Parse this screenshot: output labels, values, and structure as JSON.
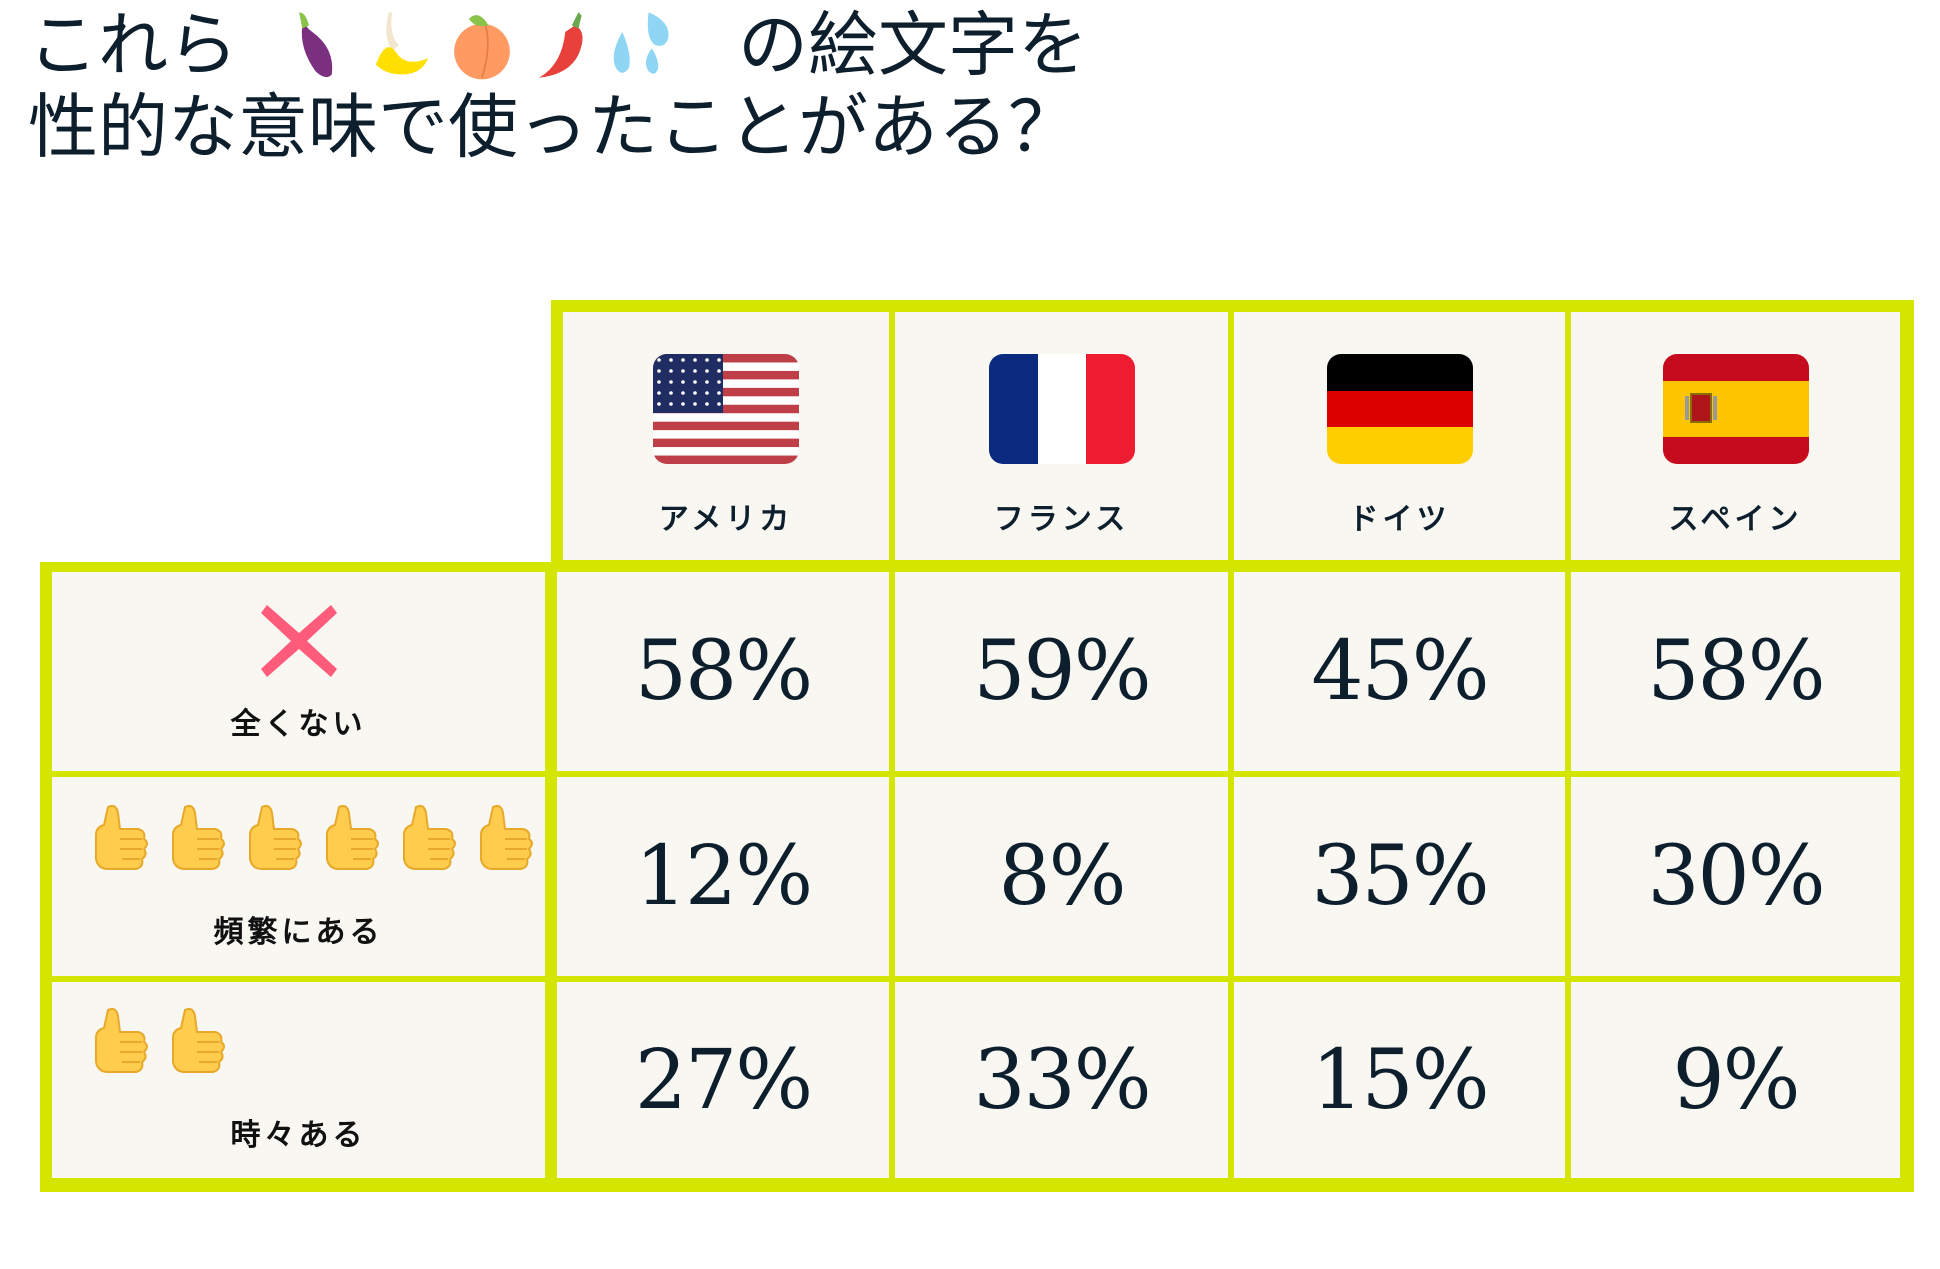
{
  "title": {
    "line1_before": "これら",
    "emojis": [
      "eggplant-icon",
      "banana-icon",
      "peach-icon",
      "hot-pepper-icon",
      "sweat-droplets-icon"
    ],
    "line1_after": "の絵文字を",
    "line2": "性的な意味で使ったことがある？"
  },
  "colors": {
    "border": "#d4e600",
    "cell_bg": "#f8f7f2",
    "text": "#0d1e2c",
    "cross": "#ff5c7c"
  },
  "columns": [
    {
      "label": "アメリカ",
      "flag": "us-flag-icon"
    },
    {
      "label": "フランス",
      "flag": "france-flag-icon"
    },
    {
      "label": "ドイツ",
      "flag": "germany-flag-icon"
    },
    {
      "label": "スペイン",
      "flag": "spain-flag-icon"
    }
  ],
  "rows": [
    {
      "label": "全くない",
      "icon": "cross-icon",
      "icon_count": 1,
      "values": [
        "58%",
        "59%",
        "45%",
        "58%"
      ]
    },
    {
      "label": "頻繁にある",
      "icon": "thumbs-up-icon",
      "icon_count": 6,
      "values": [
        "12%",
        "8%",
        "35%",
        "30%"
      ]
    },
    {
      "label": "時々ある",
      "icon": "thumbs-up-icon",
      "icon_count": 2,
      "values": [
        "27%",
        "33%",
        "15%",
        "9%"
      ]
    }
  ]
}
